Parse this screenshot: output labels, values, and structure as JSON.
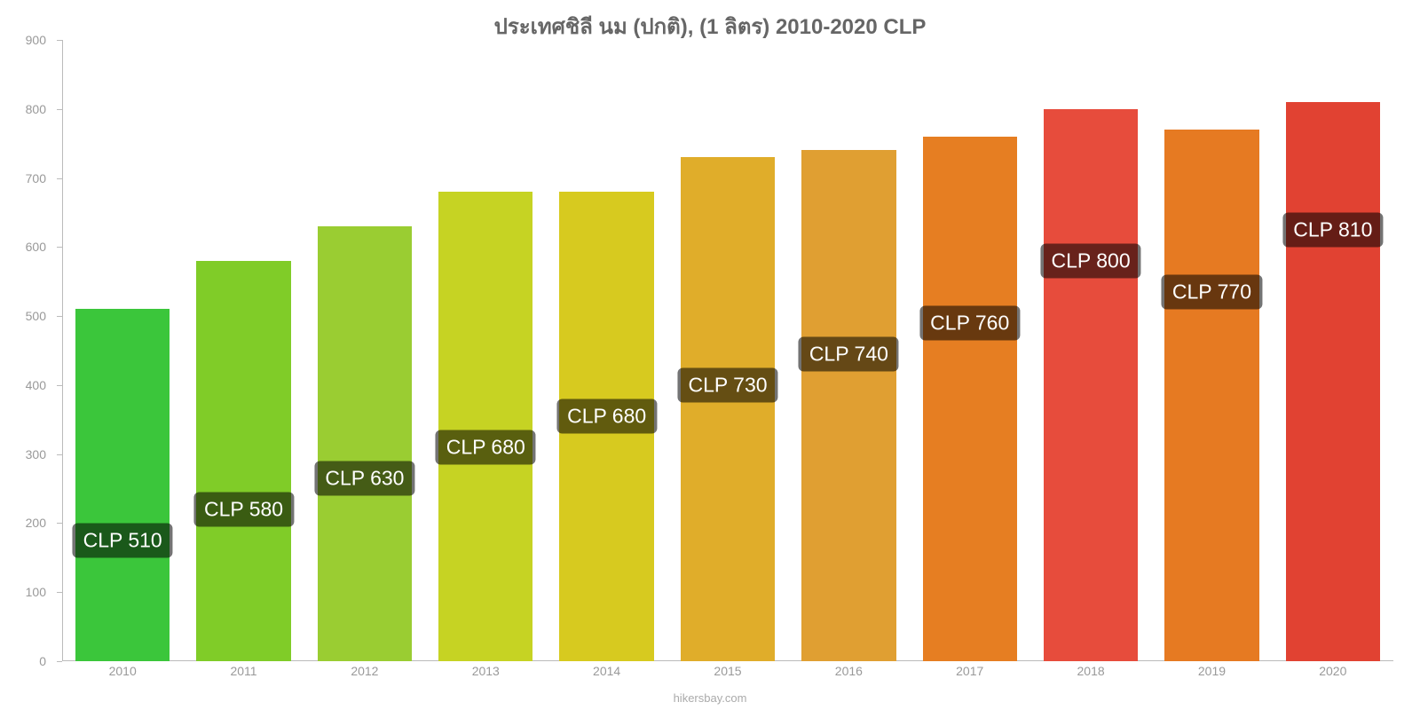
{
  "chart": {
    "type": "bar",
    "title": "ประเทศชิลี นม (ปกติ), (1 ลิตร) 2010-2020 CLP",
    "title_fontsize": 24,
    "title_color": "#666666",
    "background_color": "#ffffff",
    "axis_color": "#bbbbbb",
    "tick_label_color": "#999999",
    "tick_label_fontsize": 14,
    "attribution": "hikersbay.com",
    "attribution_color": "#aaaaaa",
    "ylim": [
      0,
      900
    ],
    "ytick_step": 100,
    "yticks": [
      0,
      100,
      200,
      300,
      400,
      500,
      600,
      700,
      800,
      900
    ],
    "bar_width_ratio": 0.78,
    "categories": [
      "2010",
      "2011",
      "2012",
      "2013",
      "2014",
      "2015",
      "2016",
      "2017",
      "2018",
      "2019",
      "2020"
    ],
    "values": [
      510,
      580,
      630,
      680,
      680,
      730,
      740,
      760,
      800,
      770,
      810
    ],
    "value_labels": [
      "CLP 510",
      "CLP 580",
      "CLP 630",
      "CLP 680",
      "CLP 680",
      "CLP 730",
      "CLP 740",
      "CLP 760",
      "CLP 800",
      "CLP 770",
      "CLP 810"
    ],
    "bar_colors": [
      "#3bc63b",
      "#80cc28",
      "#9acd32",
      "#c6d323",
      "#d7ca1f",
      "#e0ad2a",
      "#e09f32",
      "#e67e22",
      "#e74c3c",
      "#e67a22",
      "#e14232"
    ],
    "label_box_bg": "rgba(0,0,0,0.55)",
    "label_text_color": "#ffffff",
    "label_fontsize": 23,
    "label_center_value": 400,
    "label_vertical_step": 35
  }
}
